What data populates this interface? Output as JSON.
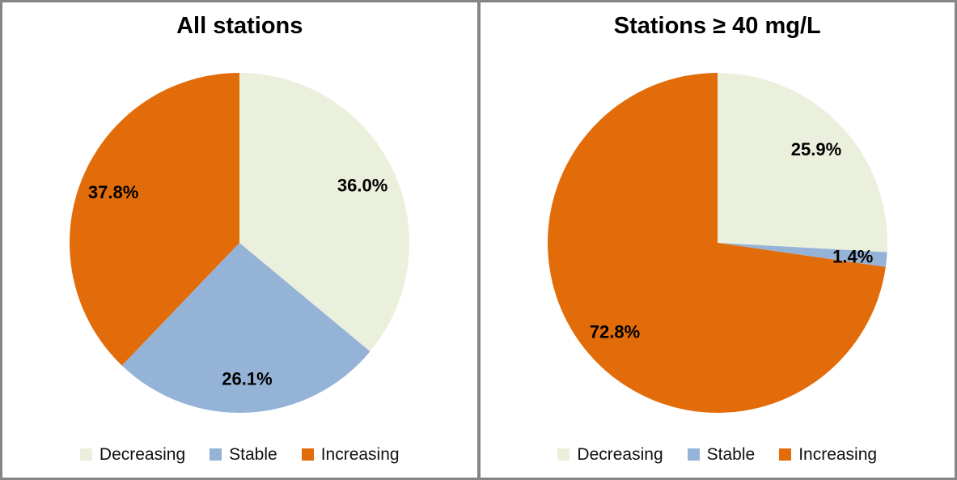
{
  "figure": {
    "border_color": "#858585",
    "background_color": "#ffffff",
    "label_text_color": "#000000"
  },
  "chart_data": [
    {
      "type": "pie",
      "title": "All stations",
      "categories": [
        "Decreasing",
        "Stable",
        "Increasing"
      ],
      "values": [
        36.0,
        26.1,
        37.8
      ],
      "labels": [
        "36.0%",
        "26.1%",
        "37.8%"
      ],
      "colors": [
        "#EBF0DC",
        "#95B3D7",
        "#E36C0A"
      ],
      "start_angle_deg": 0,
      "direction": "clockwise",
      "legend_position": "bottom"
    },
    {
      "type": "pie",
      "title": "Stations ≥ 40 mg/L",
      "categories": [
        "Decreasing",
        "Stable",
        "Increasing"
      ],
      "values": [
        25.9,
        1.4,
        72.8
      ],
      "labels": [
        "25.9%",
        "1.4%",
        "72.8%"
      ],
      "colors": [
        "#EBF0DC",
        "#95B3D7",
        "#E36C0A"
      ],
      "start_angle_deg": 0,
      "direction": "clockwise",
      "legend_position": "bottom"
    }
  ]
}
